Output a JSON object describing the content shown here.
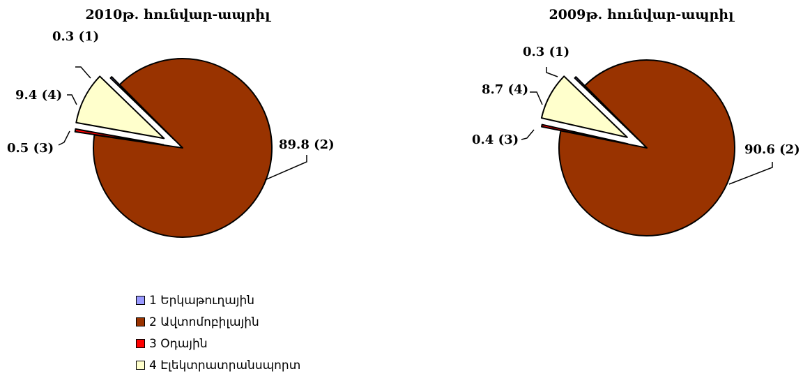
{
  "chart_data": [
    {
      "type": "pie",
      "title": "2010թ. հունվար-ապրիլ",
      "slices": [
        {
          "category": "1",
          "value": 0.3,
          "label": "0.3 (1)"
        },
        {
          "category": "2",
          "value": 89.8,
          "label": "89.8 (2)"
        },
        {
          "category": "3",
          "value": 0.5,
          "label": "0.5 (3)"
        },
        {
          "category": "4",
          "value": 9.4,
          "label": "9.4 (4)"
        }
      ]
    },
    {
      "type": "pie",
      "title": "2009թ. հունվար-ապրիլ",
      "slices": [
        {
          "category": "1",
          "value": 0.3,
          "label": "0.3 (1)"
        },
        {
          "category": "2",
          "value": 90.6,
          "label": "90.6 (2)"
        },
        {
          "category": "3",
          "value": 0.4,
          "label": "0.4 (3)"
        },
        {
          "category": "4",
          "value": 8.7,
          "label": "8.7 (4)"
        }
      ]
    }
  ],
  "legend": [
    {
      "label": "1 Երկաթուղային",
      "color": "#9999ff"
    },
    {
      "label": "2 Ավտոմոբիլային",
      "color": "#993300"
    },
    {
      "label": "3 Օդային",
      "color": "#ff0000"
    },
    {
      "label": "4 Էլեկտրատրանսպորտ",
      "color": "#ffffcc"
    }
  ]
}
